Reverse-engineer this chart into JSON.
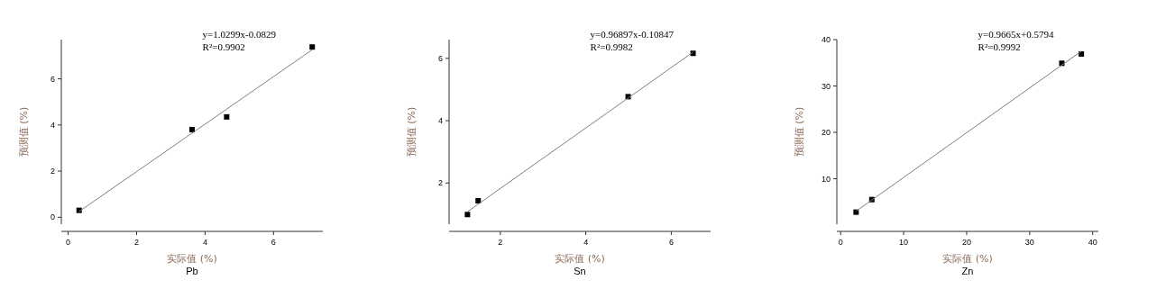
{
  "chart_data": [
    {
      "type": "scatter",
      "title": "Pb",
      "xlabel": "实际值 (%)",
      "ylabel": "预测值 (%)",
      "xlim": [
        -0.2,
        7.44
      ],
      "ylim": [
        -0.3,
        7.7
      ],
      "xticks": [
        0,
        2,
        4,
        6
      ],
      "yticks": [
        0,
        2,
        4,
        6
      ],
      "annotations": [
        "y=1.0299x-0.0829",
        "R²=0.9902"
      ],
      "series": [
        {
          "type": "scatter",
          "marker": "square",
          "color": "#000000",
          "x": [
            0.32,
            3.62,
            4.63,
            7.13
          ],
          "values": [
            0.3,
            3.8,
            4.35,
            7.38
          ]
        },
        {
          "type": "line",
          "color": "#808080",
          "x": [
            0.32,
            7.13
          ],
          "values": [
            0.25,
            7.26
          ]
        }
      ]
    },
    {
      "type": "scatter",
      "title": "Sn",
      "xlabel": "实际值 (%)",
      "ylabel": "预测值 (%)",
      "xlim": [
        0.8,
        6.92
      ],
      "ylim": [
        0.68,
        6.6
      ],
      "xticks": [
        2,
        4,
        6
      ],
      "yticks": [
        2,
        4,
        6
      ],
      "annotations": [
        "y=0.96897x-0.10847",
        "R²=0.9982"
      ],
      "series": [
        {
          "type": "scatter",
          "marker": "square",
          "color": "#000000",
          "x": [
            1.23,
            1.48,
            4.99,
            6.51
          ],
          "values": [
            0.99,
            1.43,
            4.77,
            6.16
          ]
        },
        {
          "type": "line",
          "color": "#808080",
          "x": [
            1.23,
            6.51
          ],
          "values": [
            1.08,
            6.2
          ]
        }
      ]
    },
    {
      "type": "scatter",
      "title": "Zn",
      "xlabel": "实际值 (%)",
      "ylabel": "预测值 (%)",
      "xlim": [
        -0.6,
        40.9
      ],
      "ylim": [
        0.2,
        40
      ],
      "xticks": [
        0,
        10,
        20,
        30,
        40
      ],
      "yticks": [
        10,
        20,
        30,
        40
      ],
      "annotations": [
        "y=0.9665x+0.5794",
        "R²=0.9992"
      ],
      "series": [
        {
          "type": "scatter",
          "marker": "square",
          "color": "#000000",
          "x": [
            2.45,
            4.95,
            35.1,
            38.2
          ],
          "values": [
            2.8,
            5.5,
            34.9,
            36.9
          ]
        },
        {
          "type": "line",
          "color": "#808080",
          "x": [
            2.45,
            38.2
          ],
          "values": [
            3.0,
            37.5
          ]
        }
      ]
    }
  ]
}
